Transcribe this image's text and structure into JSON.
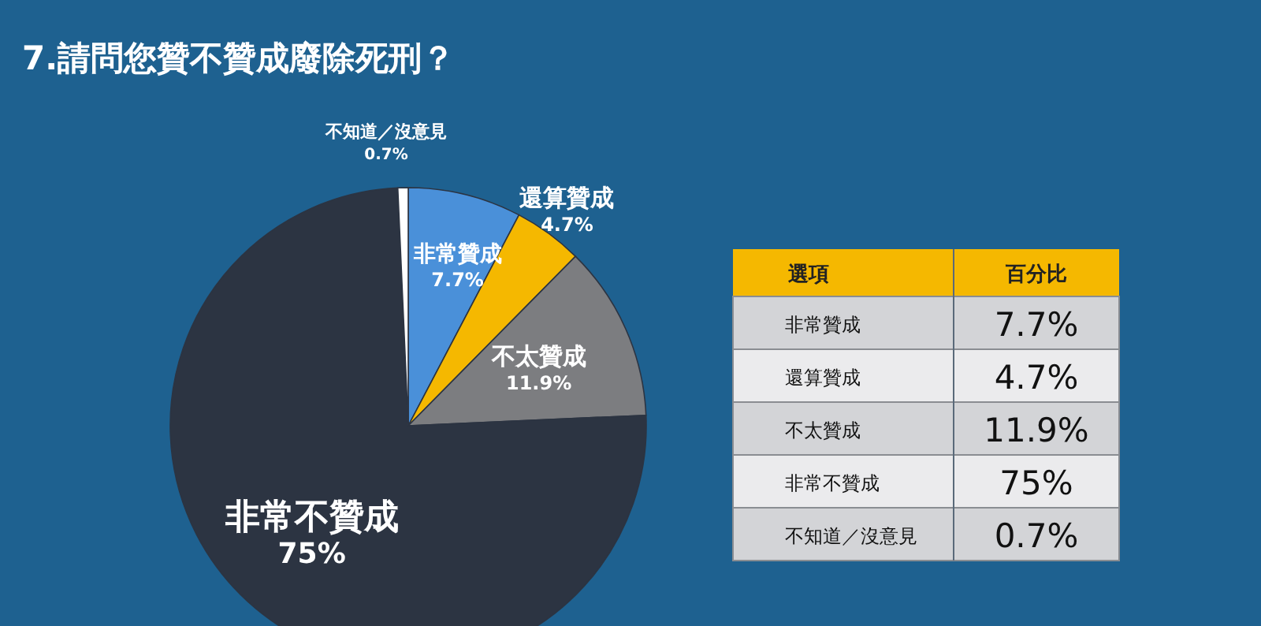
{
  "chart_data": {
    "type": "pie",
    "title": "7.請問您贊不贊成廢除死刑？",
    "categories": [
      "非常贊成",
      "還算贊成",
      "不太贊成",
      "非常不贊成",
      "不知道／沒意見"
    ],
    "values": [
      7.7,
      4.7,
      11.9,
      75,
      0.7
    ],
    "value_labels": [
      "7.7%",
      "4.7%",
      "11.9%",
      "75%",
      "0.7%"
    ],
    "colors": [
      "#4a90d9",
      "#f5b800",
      "#7c7d80",
      "#2c3442",
      "#ffffff"
    ],
    "annotations": [
      "選項",
      "百分比"
    ]
  }
}
